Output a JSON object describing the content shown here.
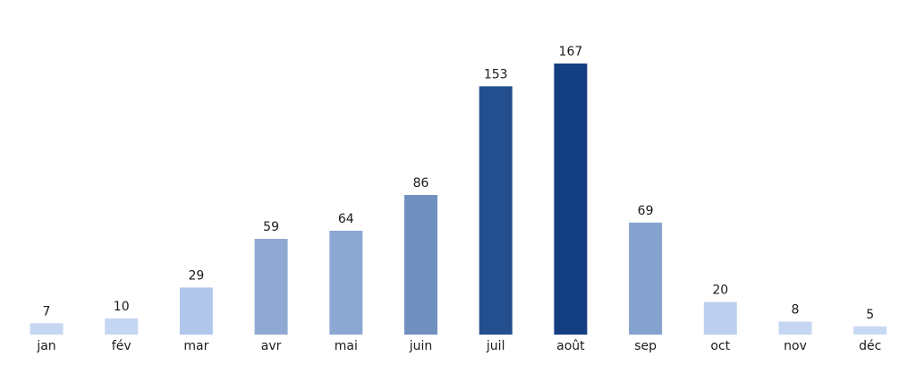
{
  "chart_data": {
    "type": "bar",
    "categories": [
      "jan",
      "fév",
      "mar",
      "avr",
      "mai",
      "juin",
      "juil",
      "août",
      "sep",
      "oct",
      "nov",
      "déc"
    ],
    "values": [
      7,
      10,
      29,
      59,
      64,
      86,
      153,
      167,
      69,
      20,
      8,
      5
    ],
    "data_labels": [
      "7",
      "10",
      "29",
      "59",
      "64",
      "86",
      "153",
      "167",
      "69",
      "20",
      "8",
      "5"
    ],
    "colors": [
      "#c6d7f2",
      "#c4d6f2",
      "#b0c7eb",
      "#8fa9d3",
      "#8ca8d2",
      "#7090c0",
      "#234f8f",
      "#133f82",
      "#85a2cf",
      "#bccff0",
      "#c4d6f2",
      "#c7d8f3"
    ],
    "title": "",
    "xlabel": "",
    "ylabel": "",
    "ylim": [
      0,
      167
    ],
    "grid": false,
    "legend": "none"
  }
}
